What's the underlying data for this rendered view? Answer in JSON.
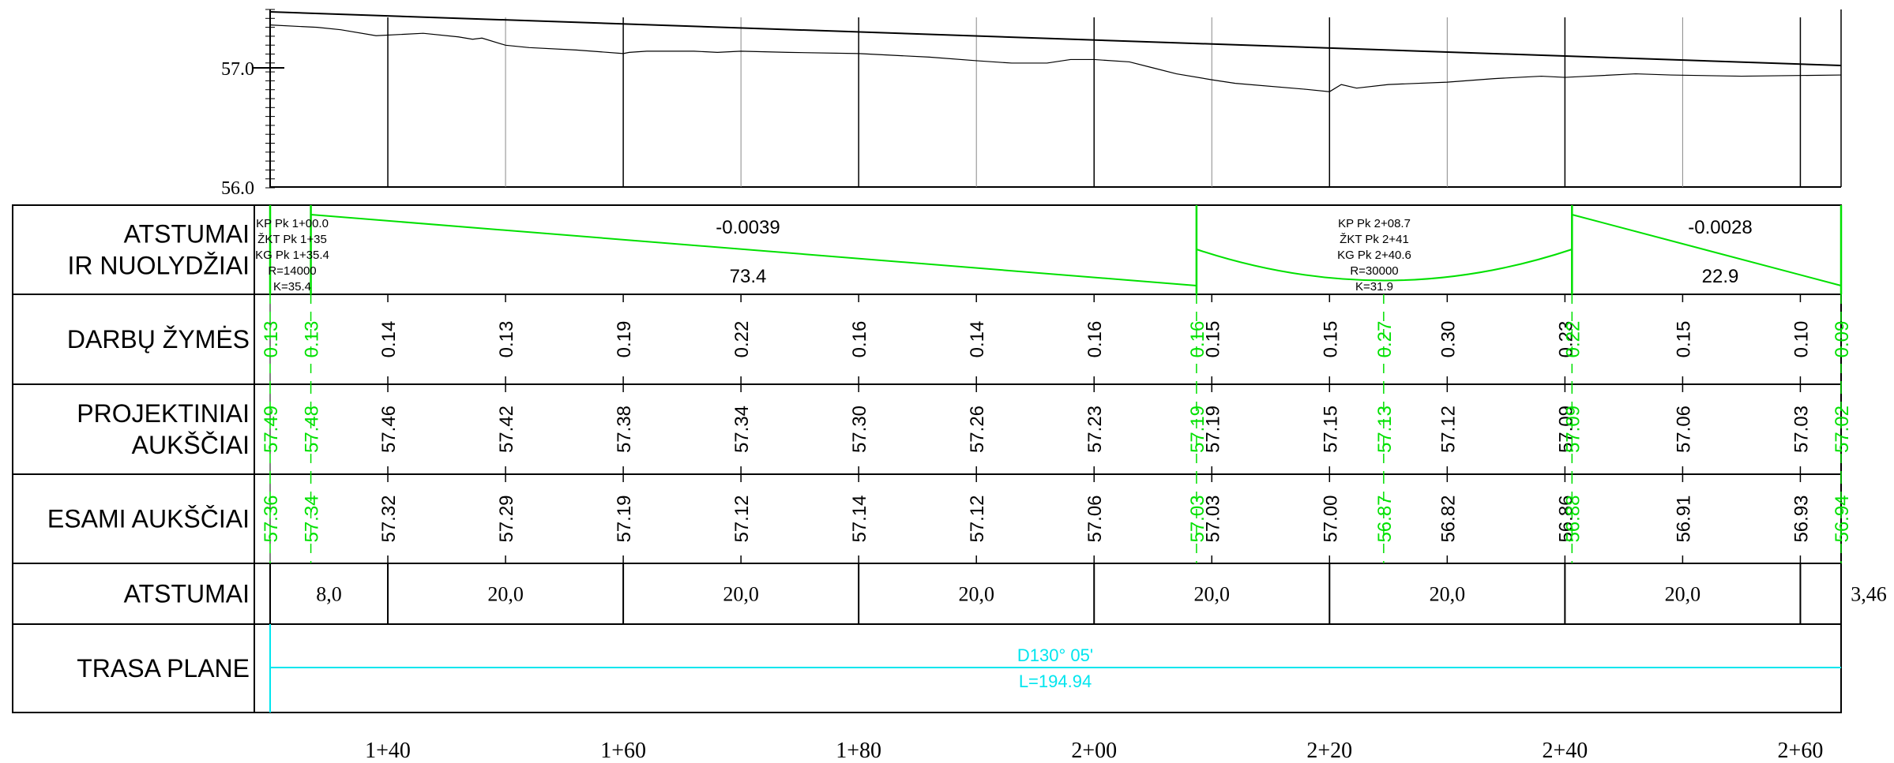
{
  "profile": {
    "elev_labels": [
      "57.0",
      "56.0"
    ],
    "design_line": [
      [
        1.3,
        57.47
      ],
      [
        2.6346,
        57.02
      ]
    ],
    "ground_line": [
      [
        1.3,
        57.36
      ],
      [
        1.34,
        57.34
      ],
      [
        1.36,
        57.32
      ],
      [
        1.39,
        57.27
      ],
      [
        1.43,
        57.29
      ],
      [
        1.46,
        57.26
      ],
      [
        1.472,
        57.24
      ],
      [
        1.48,
        57.25
      ],
      [
        1.5,
        57.19
      ],
      [
        1.52,
        57.17
      ],
      [
        1.56,
        57.15
      ],
      [
        1.6,
        57.12
      ],
      [
        1.605,
        57.13
      ],
      [
        1.62,
        57.14
      ],
      [
        1.66,
        57.14
      ],
      [
        1.68,
        57.13
      ],
      [
        1.7,
        57.14
      ],
      [
        1.74,
        57.13
      ],
      [
        1.8,
        57.12
      ],
      [
        1.86,
        57.09
      ],
      [
        1.9,
        57.06
      ],
      [
        1.93,
        57.04
      ],
      [
        1.96,
        57.04
      ],
      [
        1.98,
        57.07
      ],
      [
        2.0,
        57.07
      ],
      [
        2.03,
        57.05
      ],
      [
        2.05,
        57.0
      ],
      [
        2.07,
        56.95
      ],
      [
        2.1,
        56.9
      ],
      [
        2.12,
        56.87
      ],
      [
        2.18,
        56.82
      ],
      [
        2.2,
        56.8
      ],
      [
        2.21,
        56.86
      ],
      [
        2.223,
        56.83
      ],
      [
        2.25,
        56.86
      ],
      [
        2.3,
        56.88
      ],
      [
        2.34,
        56.91
      ],
      [
        2.38,
        56.93
      ],
      [
        2.4,
        56.92
      ],
      [
        2.42,
        56.93
      ],
      [
        2.46,
        56.95
      ],
      [
        2.49,
        56.94
      ],
      [
        2.55,
        56.93
      ],
      [
        2.6346,
        56.94
      ]
    ]
  },
  "rows": [
    {
      "label": [
        "ATSTUMAI",
        "IR NUOLYDŽIAI"
      ]
    },
    {
      "label": [
        "DARBŲ ŽYMĖS"
      ]
    },
    {
      "label": [
        "PROJEKTINIAI",
        "AUKŠČIAI"
      ]
    },
    {
      "label": [
        "ESAMI AUKŠČIAI"
      ]
    },
    {
      "label": [
        "ATSTUMAI"
      ]
    },
    {
      "label": [
        "TRASA PLANE"
      ]
    }
  ],
  "slopes": [
    {
      "grade": "-0.0039",
      "length": "73.4"
    },
    {
      "grade": "-0.0028",
      "length": "22.9"
    }
  ],
  "curve1": [
    "KP Pk 1+00.0",
    "ŽKT Pk 1+35",
    "KG Pk 1+35.4",
    "R=14000",
    "K=35.4"
  ],
  "curve2": [
    "KP Pk 2+08.7",
    "ŽKT Pk 2+41",
    "KG Pk 2+40.6",
    "R=30000",
    "K=31.9"
  ],
  "stations": [
    {
      "x": 1.3,
      "green": true,
      "work": "0.13",
      "design": "57.49",
      "exist": "57.36"
    },
    {
      "x": 1.3346,
      "green": true,
      "work": "0.13",
      "design": "57.48",
      "exist": "57.34"
    },
    {
      "x": 1.4,
      "green": false,
      "work": "0.14",
      "design": "57.46",
      "exist": "57.32"
    },
    {
      "x": 1.5,
      "green": false,
      "work": "0.13",
      "design": "57.42",
      "exist": "57.29"
    },
    {
      "x": 1.6,
      "green": false,
      "work": "0.19",
      "design": "57.38",
      "exist": "57.19"
    },
    {
      "x": 1.7,
      "green": false,
      "work": "0.22",
      "design": "57.34",
      "exist": "57.12"
    },
    {
      "x": 1.8,
      "green": false,
      "work": "0.16",
      "design": "57.30",
      "exist": "57.14"
    },
    {
      "x": 1.9,
      "green": false,
      "work": "0.14",
      "design": "57.26",
      "exist": "57.12"
    },
    {
      "x": 2.0,
      "green": false,
      "work": "0.16",
      "design": "57.23",
      "exist": "57.06"
    },
    {
      "x": 2.087,
      "green": true,
      "work": "0.16",
      "design": "57.19",
      "exist": "57.03"
    },
    {
      "x": 2.1,
      "green": false,
      "work": "0.15",
      "design": "57.19",
      "exist": "57.03"
    },
    {
      "x": 2.2,
      "green": false,
      "work": "0.15",
      "design": "57.15",
      "exist": "57.00"
    },
    {
      "x": 2.246,
      "green": true,
      "work": "0.27",
      "design": "57.13",
      "exist": "56.87"
    },
    {
      "x": 2.3,
      "green": false,
      "work": "0.30",
      "design": "57.12",
      "exist": "56.82"
    },
    {
      "x": 2.4,
      "green": false,
      "work": "0.23",
      "design": "57.09",
      "exist": "56.86"
    },
    {
      "x": 2.406,
      "green": true,
      "work": "0.22",
      "design": "57.09",
      "exist": "56.88"
    },
    {
      "x": 2.5,
      "green": false,
      "work": "0.15",
      "design": "57.06",
      "exist": "56.91"
    },
    {
      "x": 2.6,
      "green": false,
      "work": "0.10",
      "design": "57.03",
      "exist": "56.93"
    },
    {
      "x": 2.6346,
      "green": true,
      "work": "0.09",
      "design": "57.02",
      "exist": "56.94"
    }
  ],
  "distances": [
    "8,0",
    "20,0",
    "20,0",
    "20,0",
    "20,0",
    "20,0",
    "20,0",
    "3,46"
  ],
  "plan": {
    "direction": "D130° 05'",
    "length": "L=194.94"
  },
  "chainage": [
    "1+40",
    "1+60",
    "1+80",
    "2+00",
    "2+20",
    "2+40",
    "2+60"
  ],
  "colors": {
    "line": "#000000",
    "green": "#00e000",
    "cyan": "#00e5ee",
    "grid": "#888888"
  }
}
